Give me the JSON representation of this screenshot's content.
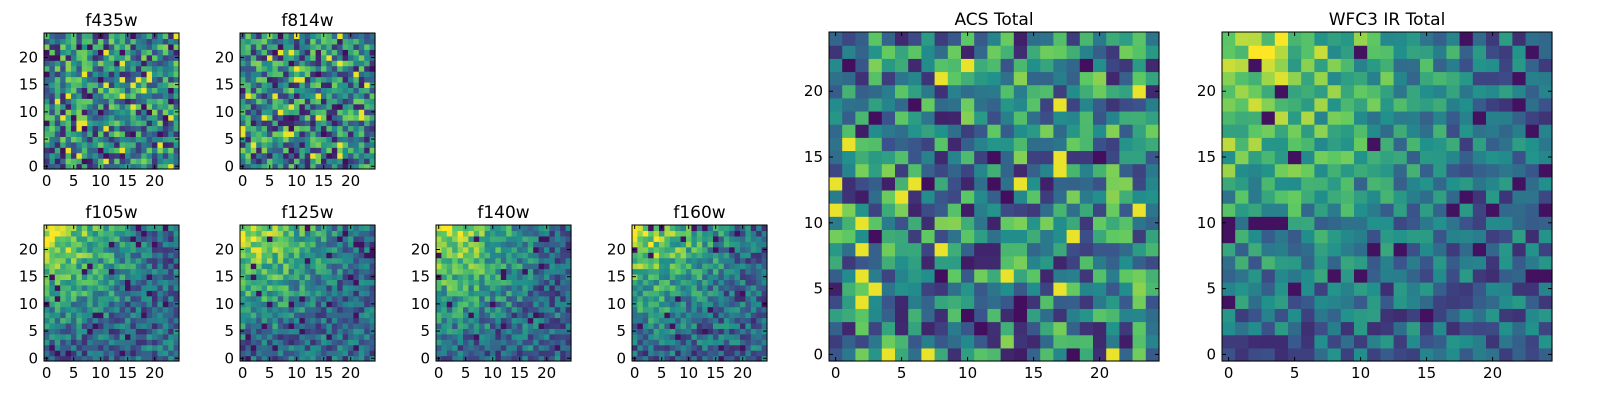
{
  "figure": {
    "colormap": [
      "#440154",
      "#3b528b",
      "#21918c",
      "#5ec962",
      "#fde725"
    ]
  },
  "chart_data": [
    {
      "id": "f435w",
      "type": "heatmap",
      "title": "f435w",
      "x_ticks": [
        0,
        5,
        10,
        15,
        20
      ],
      "y_ticks": [
        0,
        5,
        10,
        15,
        20
      ],
      "xlim": [
        0,
        24
      ],
      "ylim": [
        0,
        24
      ],
      "grid": false,
      "pattern": "noise",
      "seed": 11
    },
    {
      "id": "f814w",
      "type": "heatmap",
      "title": "f814w",
      "x_ticks": [
        0,
        5,
        10,
        15,
        20
      ],
      "y_ticks": [
        0,
        5,
        10,
        15,
        20
      ],
      "xlim": [
        0,
        24
      ],
      "ylim": [
        0,
        24
      ],
      "grid": false,
      "pattern": "noise",
      "seed": 23
    },
    {
      "id": "f105w",
      "type": "heatmap",
      "title": "f105w",
      "x_ticks": [
        0,
        5,
        10,
        15,
        20
      ],
      "y_ticks": [
        0,
        5,
        10,
        15,
        20
      ],
      "xlim": [
        0,
        24
      ],
      "ylim": [
        0,
        24
      ],
      "grid": false,
      "pattern": "gradient",
      "seed": 37
    },
    {
      "id": "f125w",
      "type": "heatmap",
      "title": "f125w",
      "x_ticks": [
        0,
        5,
        10,
        15,
        20
      ],
      "y_ticks": [
        0,
        5,
        10,
        15,
        20
      ],
      "xlim": [
        0,
        24
      ],
      "ylim": [
        0,
        24
      ],
      "grid": false,
      "pattern": "gradient",
      "seed": 41
    },
    {
      "id": "f140w",
      "type": "heatmap",
      "title": "f140w",
      "x_ticks": [
        0,
        5,
        10,
        15,
        20
      ],
      "y_ticks": [
        0,
        5,
        10,
        15,
        20
      ],
      "xlim": [
        0,
        24
      ],
      "ylim": [
        0,
        24
      ],
      "grid": false,
      "pattern": "gradient",
      "seed": 53
    },
    {
      "id": "f160w",
      "type": "heatmap",
      "title": "f160w",
      "x_ticks": [
        0,
        5,
        10,
        15,
        20
      ],
      "y_ticks": [
        0,
        5,
        10,
        15,
        20
      ],
      "xlim": [
        0,
        24
      ],
      "ylim": [
        0,
        24
      ],
      "grid": false,
      "pattern": "gradient",
      "seed": 67
    },
    {
      "id": "acs_total",
      "type": "heatmap",
      "title": "ACS Total",
      "x_ticks": [
        0,
        5,
        10,
        15,
        20
      ],
      "y_ticks": [
        0,
        5,
        10,
        15,
        20
      ],
      "xlim": [
        0,
        24
      ],
      "ylim": [
        0,
        24
      ],
      "grid": false,
      "pattern": "noise",
      "seed": 79
    },
    {
      "id": "wfc3_ir_total",
      "type": "heatmap",
      "title": "WFC3 IR Total",
      "x_ticks": [
        0,
        5,
        10,
        15,
        20
      ],
      "y_ticks": [
        0,
        5,
        10,
        15,
        20
      ],
      "xlim": [
        0,
        24
      ],
      "ylim": [
        0,
        24
      ],
      "grid": false,
      "pattern": "gradient",
      "seed": 97
    }
  ]
}
